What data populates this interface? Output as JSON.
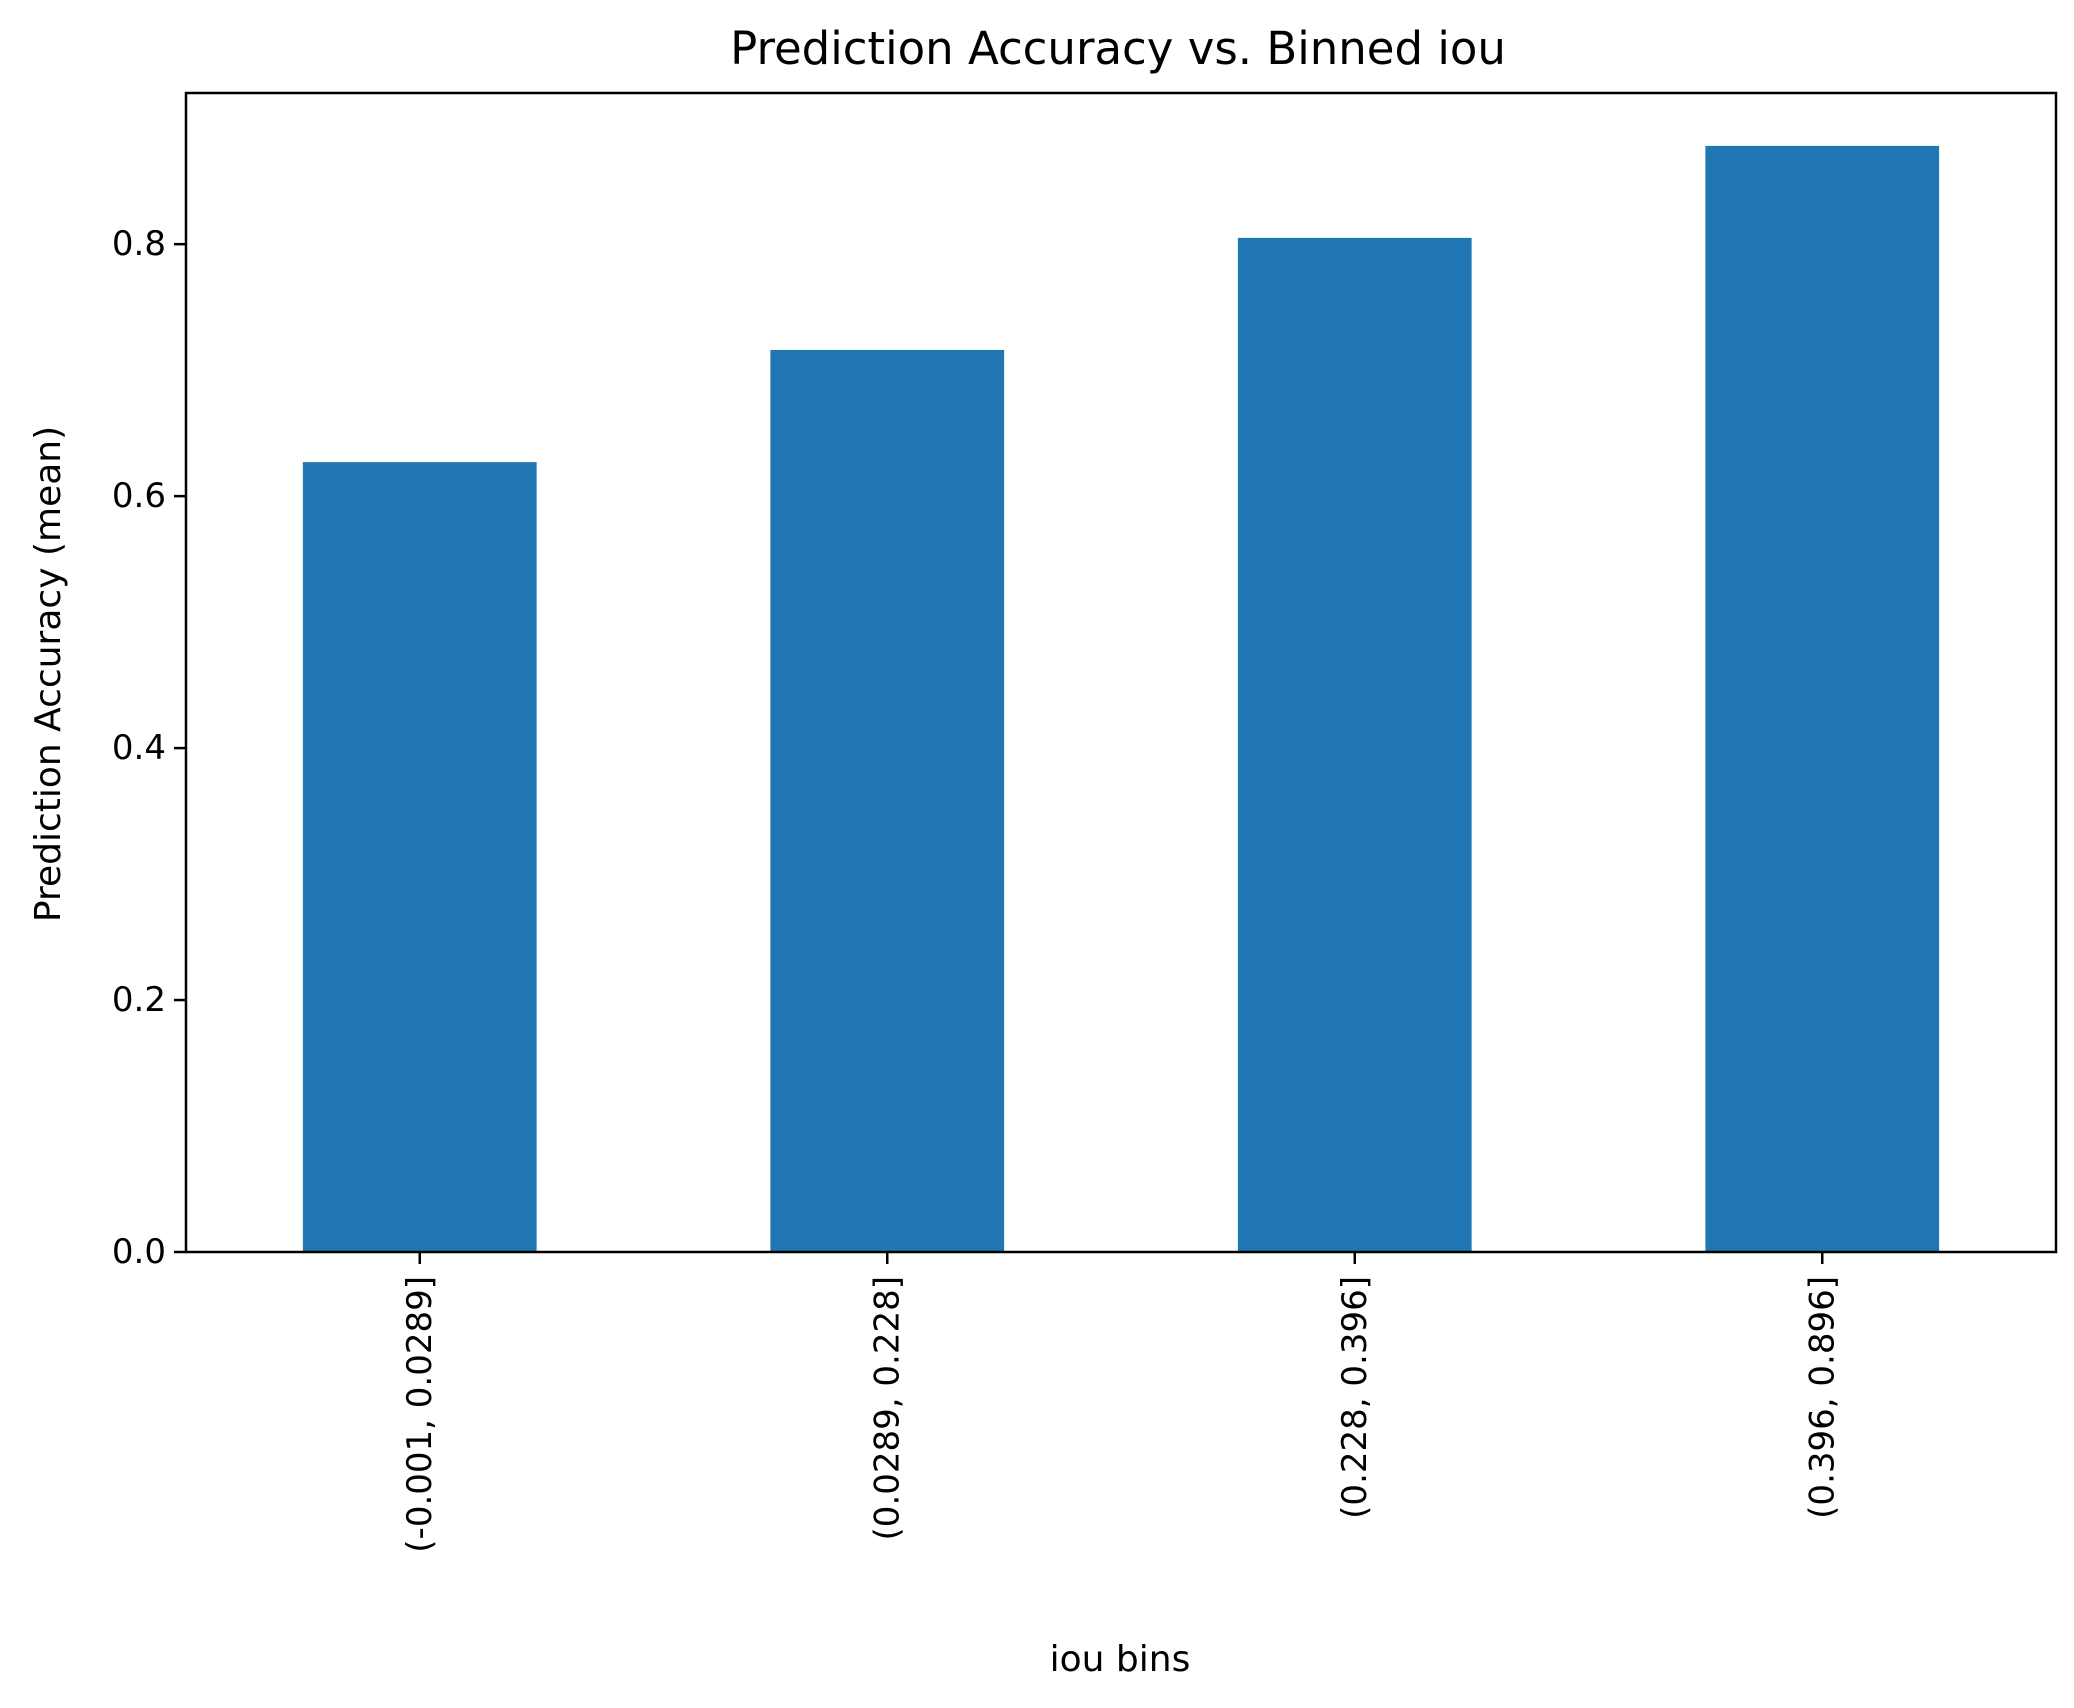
{
  "chart_data": {
    "type": "bar",
    "title": "Prediction Accuracy vs. Binned iou",
    "xlabel": "iou bins",
    "ylabel": "Prediction Accuracy (mean)",
    "categories": [
      "(-0.001, 0.0289]",
      "(0.0289, 0.228]",
      "(0.228, 0.396]",
      "(0.396, 0.896]"
    ],
    "values": [
      0.627,
      0.716,
      0.805,
      0.878
    ],
    "ylim": [
      0,
      0.92
    ],
    "yticks": [
      0.0,
      0.2,
      0.4,
      0.6,
      0.8
    ],
    "ytick_labels": [
      "0.0",
      "0.2",
      "0.4",
      "0.6",
      "0.8"
    ],
    "grid": false,
    "legend": "none",
    "colors": {
      "bar": "#2077b4",
      "axis": "#000000",
      "background": "#ffffff"
    }
  }
}
